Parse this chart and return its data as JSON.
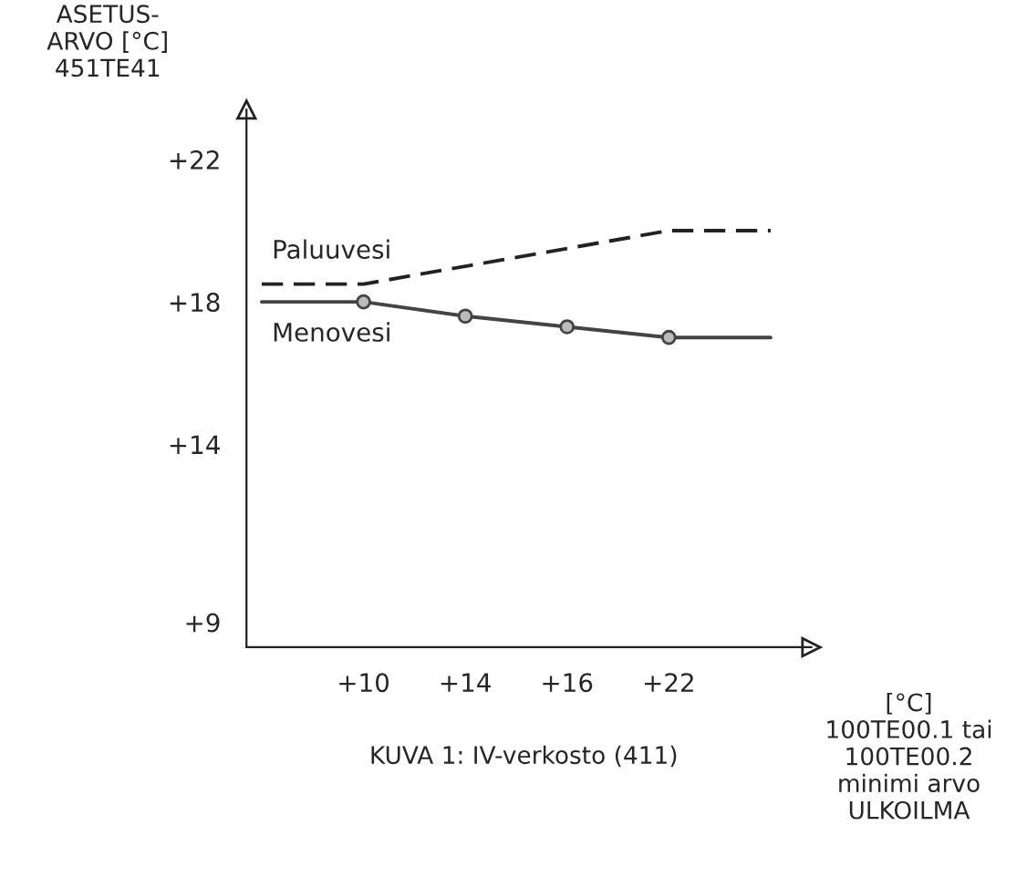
{
  "chart_data": {
    "type": "line",
    "categories": [
      null,
      "+10",
      "+14",
      "+16",
      "+22",
      null
    ],
    "series": [
      {
        "name": "Paluuvesi",
        "color": "#222222",
        "values": [
          18.5,
          18.5,
          19.0,
          19.5,
          20.0,
          20.0
        ],
        "line_style": "dashed",
        "marker": "none"
      },
      {
        "name": "Menovesi",
        "color": "#444444",
        "values": [
          18.0,
          18.0,
          17.6,
          17.3,
          17.0,
          17.0
        ],
        "line_style": "solid",
        "marker": "circle"
      }
    ],
    "ylim": [
      8.3,
      23.4
    ],
    "yticks": [
      {
        "value": 9,
        "label": "+9"
      },
      {
        "value": 14,
        "label": "+14"
      },
      {
        "value": 18,
        "label": "+18"
      },
      {
        "value": 22,
        "label": "+22"
      }
    ],
    "ylabel": "ASETUS-\nARVO [°C]\n451TE41",
    "xlabel": "[°C]\n100TE00.1 tai\n100TE00.2\nminimi arvo\nULKOILMA",
    "annotations": [
      "KUVA 1: IV-verkosto (411)"
    ],
    "grid": false,
    "legend": false
  }
}
